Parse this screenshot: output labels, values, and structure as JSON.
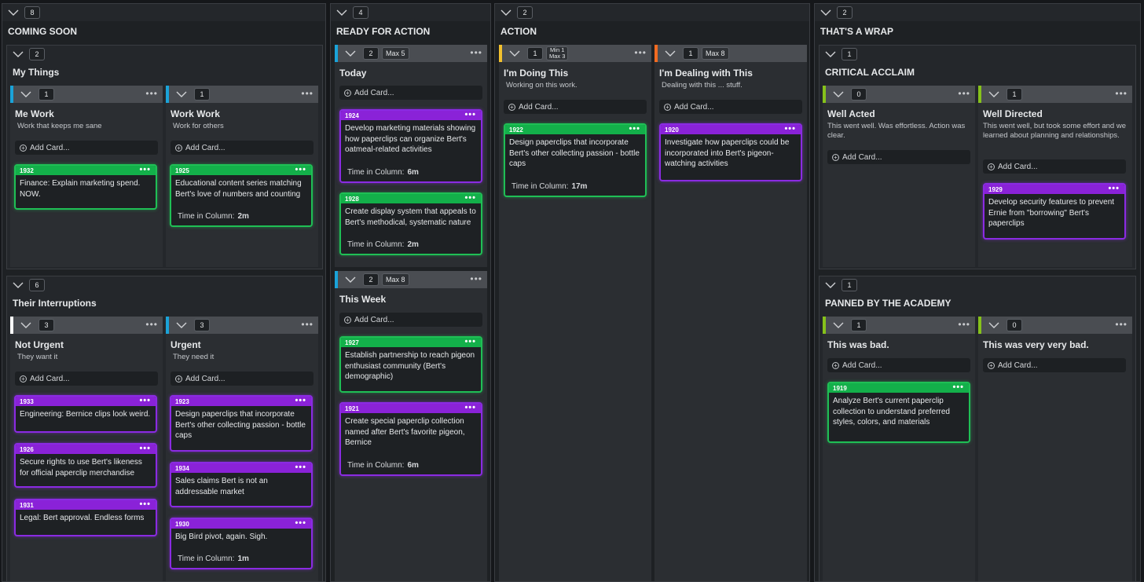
{
  "colors": {
    "green": "#1fbf55",
    "purple": "#8a2be2",
    "blue": "#1aa3d9",
    "white": "#ffffff",
    "yellow": "#f2c12e",
    "orange": "#f26b21",
    "lime": "#86c21b"
  },
  "columns": [
    {
      "count": "8",
      "title": "COMING SOON"
    },
    {
      "count": "4",
      "title": "READY FOR ACTION"
    },
    {
      "count": "2",
      "title": "ACTION"
    },
    {
      "count": "2",
      "title": "THAT'S A WRAP"
    }
  ],
  "my_things": {
    "count": "2",
    "title": "My Things"
  },
  "me_work": {
    "count": "1",
    "title": "Me Work",
    "sub": "Work that keeps me sane",
    "add": "Add Card...",
    "cards": [
      {
        "id": "1932",
        "text": "Finance: Explain marketing spend. NOW."
      }
    ]
  },
  "work_work": {
    "count": "1",
    "title": "Work Work",
    "sub": "Work for others",
    "add": "Add Card...",
    "cards": [
      {
        "id": "1925",
        "text": "Educational content series matching Bert's love of numbers and counting",
        "time_label": "Time in Column:",
        "time": "2m"
      }
    ]
  },
  "their_int": {
    "count": "6",
    "title": "Their Interruptions"
  },
  "not_urgent": {
    "count": "3",
    "title": "Not Urgent",
    "sub": "They want it",
    "add": "Add Card...",
    "cards": [
      {
        "id": "1933",
        "text": "Engineering: Bernice clips look weird."
      },
      {
        "id": "1926",
        "text": "Secure rights to use Bert's likeness for official paperclip merchandise"
      },
      {
        "id": "1931",
        "text": "Legal: Bert approval. Endless forms"
      }
    ]
  },
  "urgent": {
    "count": "3",
    "title": "Urgent",
    "sub": "They need it",
    "add": "Add Card...",
    "cards": [
      {
        "id": "1923",
        "text": "Design paperclips that incorporate Bert's other collecting passion - bottle caps"
      },
      {
        "id": "1934",
        "text": "Sales claims Bert is not an addressable market"
      },
      {
        "id": "1930",
        "text": "Big Bird pivot, again. Sigh.",
        "time_label": "Time in Column:",
        "time": "1m"
      }
    ]
  },
  "today": {
    "count": "2",
    "wip": "Max 5",
    "title": "Today",
    "add": "Add Card...",
    "cards": [
      {
        "id": "1924",
        "text": "Develop marketing materials showing how paperclips can organize Bert's oatmeal-related activities",
        "time_label": "Time in Column:",
        "time": "6m"
      },
      {
        "id": "1928",
        "text": "Create display system that appeals to Bert's methodical, systematic nature",
        "time_label": "Time in Column:",
        "time": "2m"
      }
    ]
  },
  "this_week": {
    "count": "2",
    "wip": "Max 8",
    "title": "This Week",
    "add": "Add Card...",
    "cards": [
      {
        "id": "1927",
        "text": "Establish partnership to reach pigeon enthusiast community (Bert's demographic)"
      },
      {
        "id": "1921",
        "text": "Create special paperclip collection named after Bert's favorite pigeon, Bernice",
        "time_label": "Time in Column:",
        "time": "6m"
      }
    ]
  },
  "doing": {
    "count": "1",
    "wip_min": "Min 1",
    "wip_max": "Max 3",
    "title": "I'm Doing This",
    "sub": "Working on this work.",
    "add": "Add Card...",
    "cards": [
      {
        "id": "1922",
        "text": "Design paperclips that incorporate Bert's other collecting passion - bottle caps",
        "time_label": "Time in Column:",
        "time": "17m"
      }
    ]
  },
  "dealing": {
    "count": "1",
    "wip": "Max 8",
    "title": "I'm Dealing with This",
    "sub": "Dealing with this ... stuff.",
    "add": "Add Card...",
    "cards": [
      {
        "id": "1920",
        "text": "Investigate how paperclips could be incorporated into Bert's pigeon-watching activities"
      }
    ]
  },
  "critical": {
    "count": "1",
    "title": "CRITICAL ACCLAIM"
  },
  "well_acted": {
    "count": "0",
    "title": "Well Acted",
    "sub": "This went well. Was effortless. Action was clear.",
    "add": "Add Card..."
  },
  "well_directed": {
    "count": "1",
    "title": "Well Directed",
    "sub": "This went well, but took some effort and we learned about planning and relationships.",
    "add": "Add Card...",
    "cards": [
      {
        "id": "1929",
        "text": "Develop security features to prevent Ernie from \"borrowing\" Bert's paperclips"
      }
    ]
  },
  "panned": {
    "count": "1",
    "title": "PANNED BY THE ACADEMY"
  },
  "bad": {
    "count": "1",
    "title": "This was bad.",
    "add": "Add Card...",
    "cards": [
      {
        "id": "1919",
        "text": "Analyze Bert's current paperclip collection to understand preferred styles, colors, and materials"
      }
    ]
  },
  "very_bad": {
    "count": "0",
    "title": "This was very very bad.",
    "add": "Add Card..."
  },
  "more": "•••"
}
